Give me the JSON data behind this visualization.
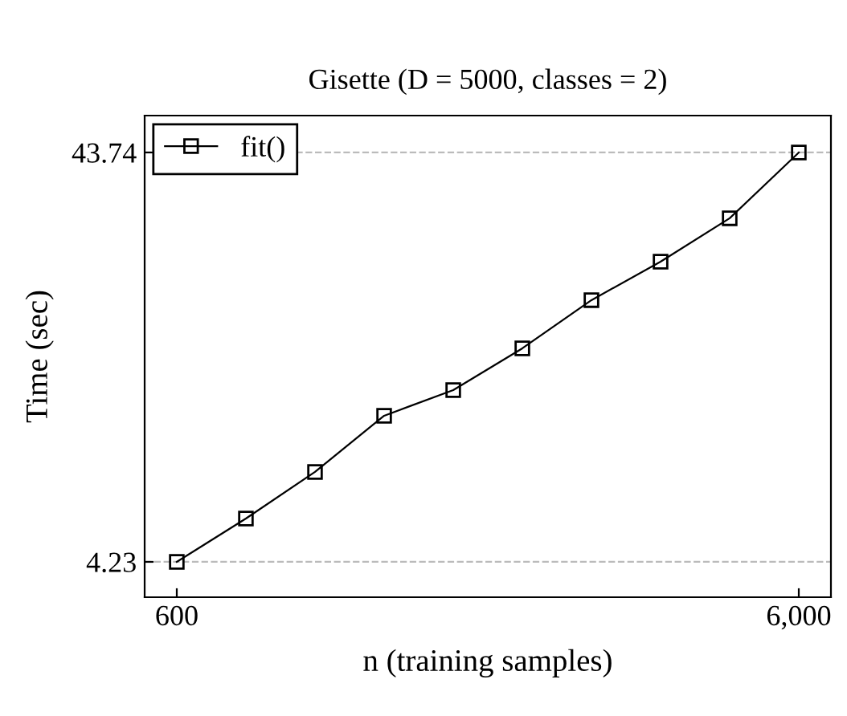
{
  "chart_data": {
    "type": "line",
    "title": "Gisette (D = 5000, classes = 2)",
    "xlabel": "n (training samples)",
    "ylabel": "Time (sec)",
    "x": [
      600,
      1200,
      1800,
      2400,
      3000,
      3600,
      4200,
      4800,
      5400,
      6000
    ],
    "series": [
      {
        "name": "fit()",
        "color": "#000000",
        "values": [
          4.23,
          8.41,
          12.91,
          18.33,
          20.81,
          24.84,
          29.49,
          33.2,
          37.39,
          43.74
        ]
      }
    ],
    "xlim": [
      321,
      6279
    ],
    "ylim": [
      0.82,
      47.3
    ],
    "xticks": [
      600,
      {
        "value": 6000,
        "label": "6,000"
      }
    ],
    "yticks": [
      4.23,
      43.74
    ],
    "grid": "y",
    "legend": "top left",
    "marker": "square",
    "line_style": "solid"
  }
}
